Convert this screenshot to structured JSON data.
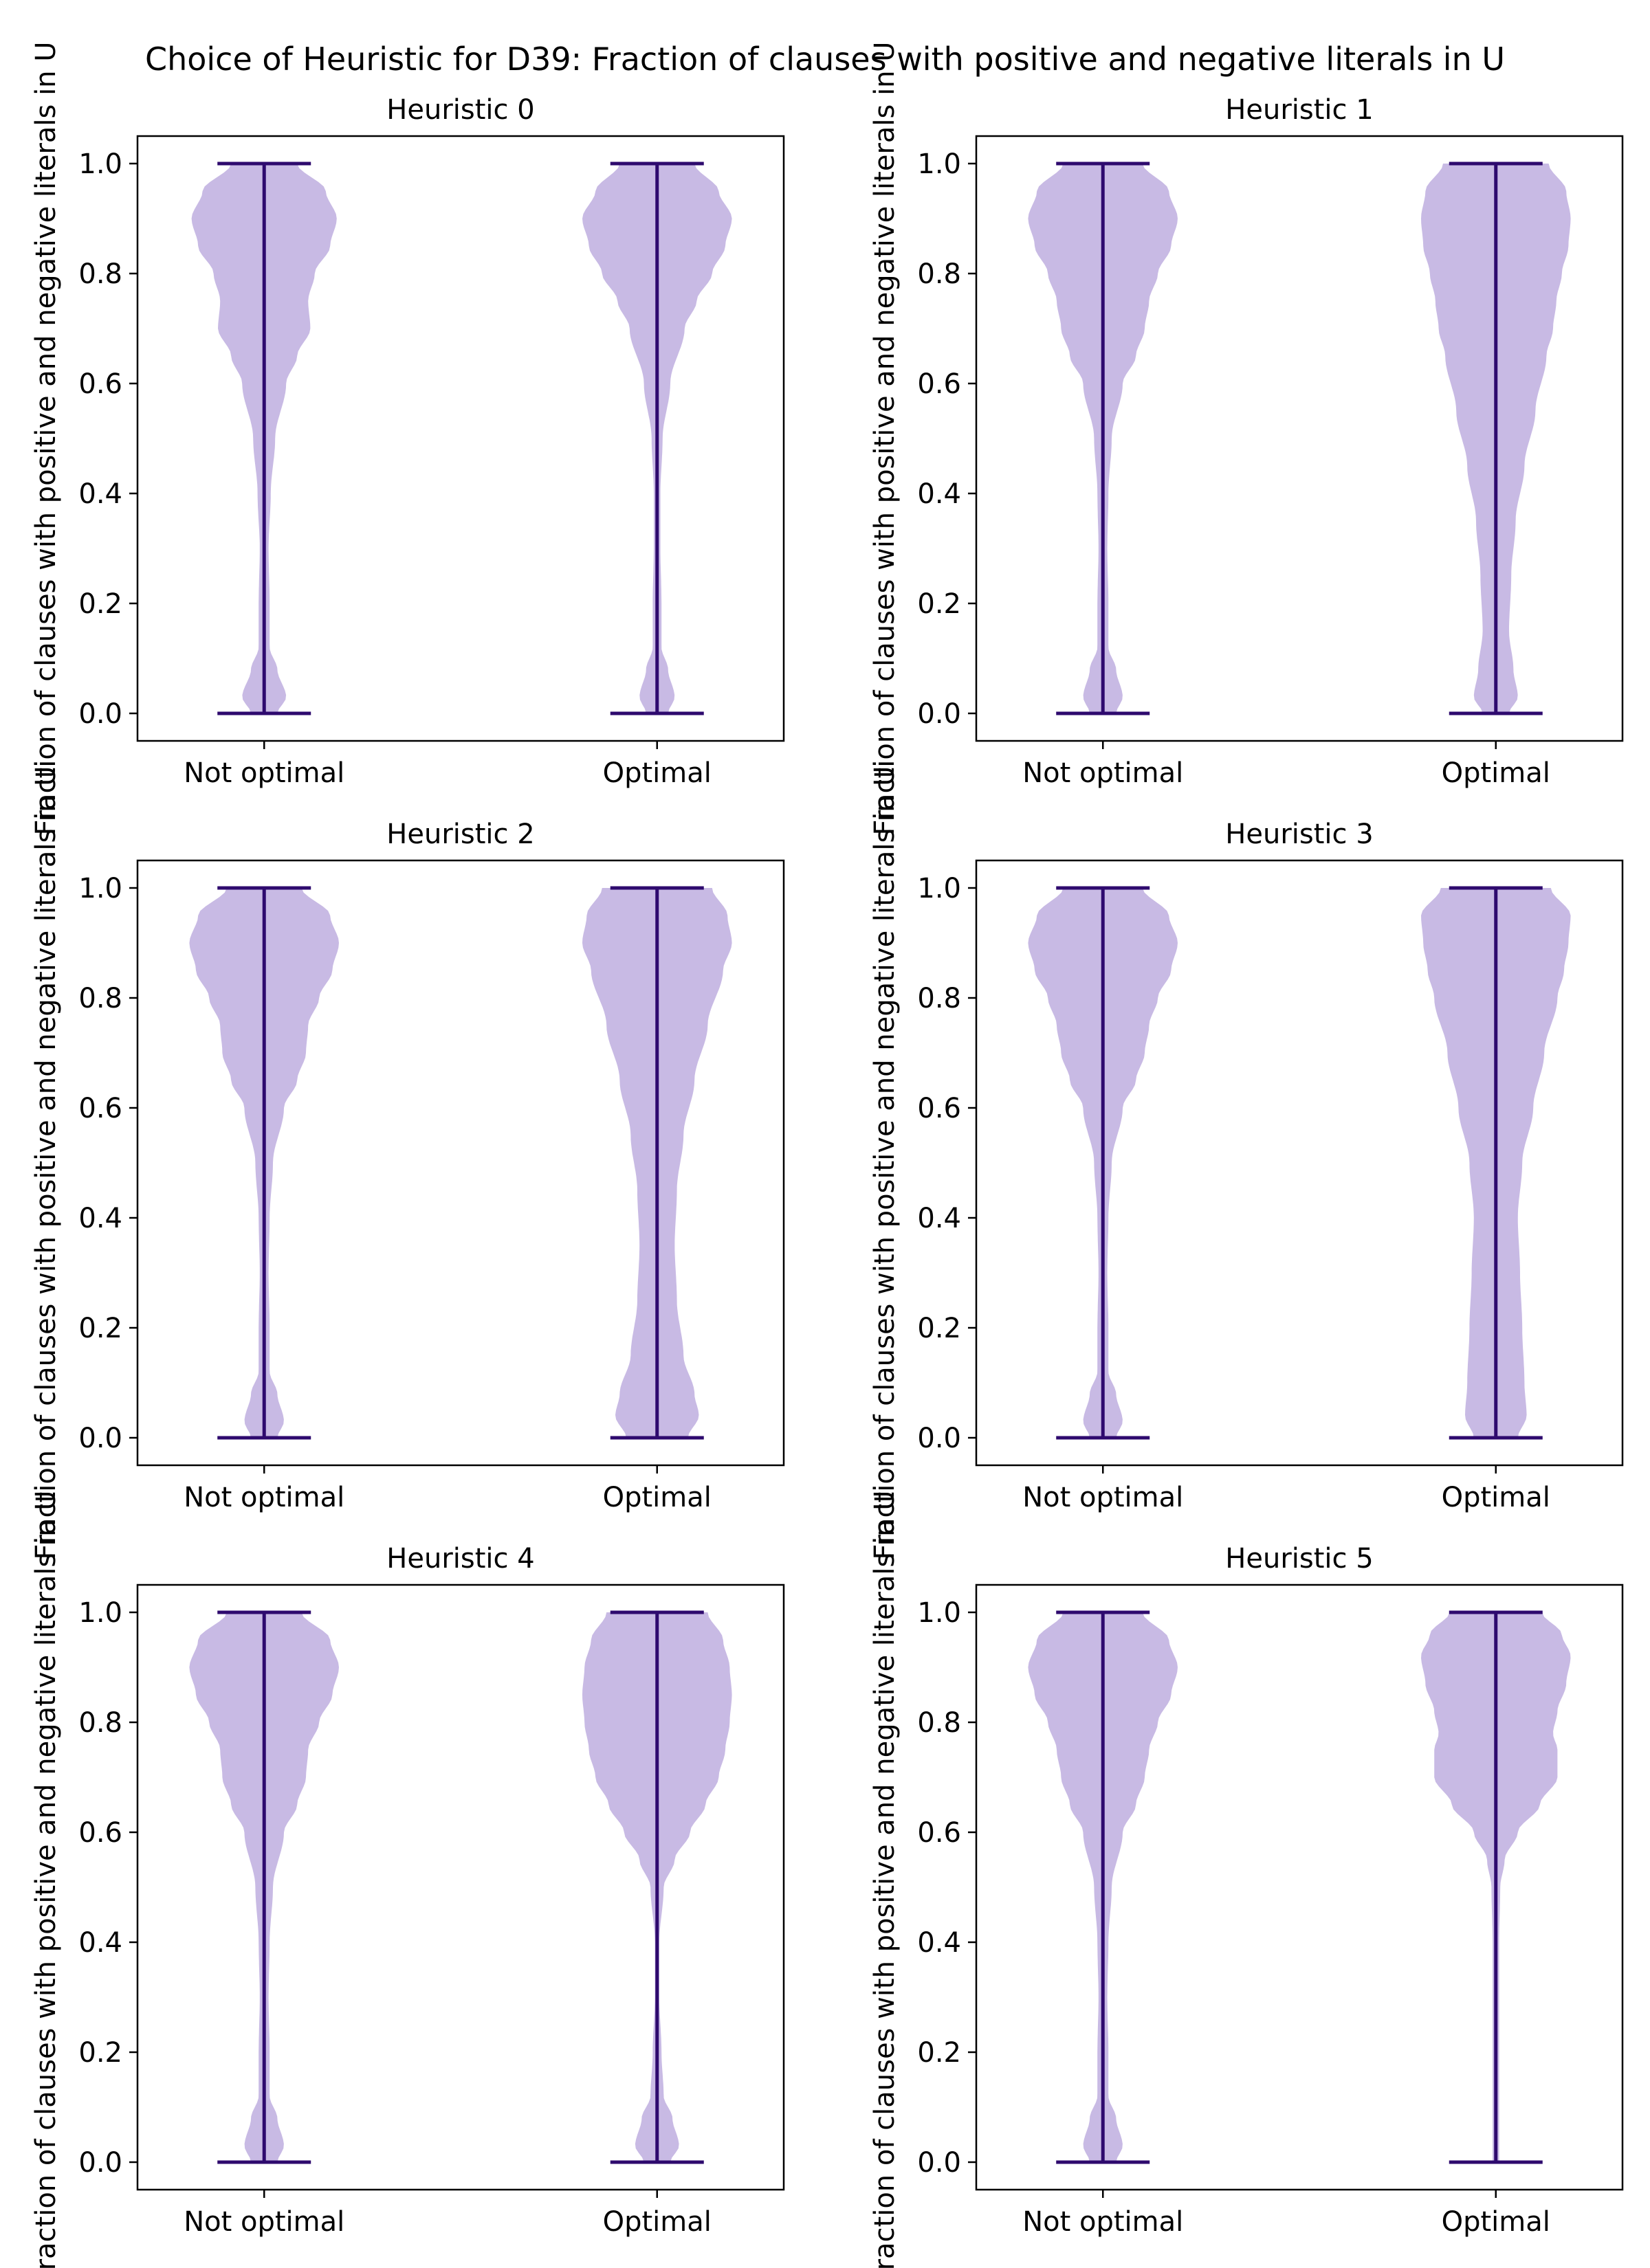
{
  "suptitle": "Choice of Heuristic for  D39: Fraction of clauses with positive and negative literals in U",
  "colors": {
    "body": "#b19cd9",
    "line": "#2e0a6e",
    "axes": "#000000"
  },
  "chart_data": {
    "type": "violin",
    "ylabel": "Fraction of clauses with positive and negative literals in U",
    "categories": [
      "Not optimal",
      "Optimal"
    ],
    "ylim": [
      -0.05,
      1.05
    ],
    "yticks": [
      0.0,
      0.2,
      0.4,
      0.6,
      0.8,
      1.0
    ],
    "grid": false,
    "panels": [
      {
        "title": "Heuristic 0",
        "violins": [
          {
            "name": "Not optimal",
            "min": 0.0,
            "max": 1.0,
            "profile": [
              [
                0,
                0.12
              ],
              [
                0.03,
                0.2
              ],
              [
                0.08,
                0.12
              ],
              [
                0.12,
                0.05
              ],
              [
                0.2,
                0.05
              ],
              [
                0.3,
                0.04
              ],
              [
                0.4,
                0.06
              ],
              [
                0.5,
                0.1
              ],
              [
                0.6,
                0.2
              ],
              [
                0.65,
                0.3
              ],
              [
                0.7,
                0.42
              ],
              [
                0.75,
                0.4
              ],
              [
                0.8,
                0.46
              ],
              [
                0.85,
                0.6
              ],
              [
                0.9,
                0.66
              ],
              [
                0.95,
                0.56
              ],
              [
                1.0,
                0.3
              ]
            ]
          },
          {
            "name": "Optimal",
            "min": 0.0,
            "max": 1.0,
            "profile": [
              [
                0,
                0.1
              ],
              [
                0.03,
                0.16
              ],
              [
                0.08,
                0.1
              ],
              [
                0.12,
                0.04
              ],
              [
                0.2,
                0.04
              ],
              [
                0.3,
                0.03
              ],
              [
                0.4,
                0.03
              ],
              [
                0.5,
                0.05
              ],
              [
                0.6,
                0.12
              ],
              [
                0.7,
                0.25
              ],
              [
                0.75,
                0.36
              ],
              [
                0.8,
                0.5
              ],
              [
                0.85,
                0.62
              ],
              [
                0.9,
                0.68
              ],
              [
                0.95,
                0.56
              ],
              [
                1.0,
                0.34
              ]
            ]
          }
        ]
      },
      {
        "title": "Heuristic 1",
        "violins": [
          {
            "name": "Not optimal",
            "min": 0.0,
            "max": 1.0,
            "profile": [
              [
                0,
                0.12
              ],
              [
                0.03,
                0.18
              ],
              [
                0.08,
                0.12
              ],
              [
                0.12,
                0.05
              ],
              [
                0.2,
                0.05
              ],
              [
                0.3,
                0.04
              ],
              [
                0.4,
                0.05
              ],
              [
                0.5,
                0.08
              ],
              [
                0.6,
                0.18
              ],
              [
                0.65,
                0.3
              ],
              [
                0.7,
                0.38
              ],
              [
                0.75,
                0.42
              ],
              [
                0.8,
                0.5
              ],
              [
                0.85,
                0.62
              ],
              [
                0.9,
                0.68
              ],
              [
                0.95,
                0.6
              ],
              [
                1.0,
                0.36
              ]
            ]
          },
          {
            "name": "Optimal",
            "min": 0.0,
            "max": 1.0,
            "profile": [
              [
                0,
                0.12
              ],
              [
                0.03,
                0.2
              ],
              [
                0.08,
                0.16
              ],
              [
                0.15,
                0.12
              ],
              [
                0.25,
                0.14
              ],
              [
                0.35,
                0.18
              ],
              [
                0.45,
                0.26
              ],
              [
                0.55,
                0.36
              ],
              [
                0.65,
                0.46
              ],
              [
                0.7,
                0.52
              ],
              [
                0.75,
                0.55
              ],
              [
                0.8,
                0.6
              ],
              [
                0.85,
                0.66
              ],
              [
                0.9,
                0.68
              ],
              [
                0.95,
                0.64
              ],
              [
                1.0,
                0.48
              ]
            ]
          }
        ]
      },
      {
        "title": "Heuristic 2",
        "violins": [
          {
            "name": "Not optimal",
            "min": 0.0,
            "max": 1.0,
            "profile": [
              [
                0,
                0.12
              ],
              [
                0.03,
                0.18
              ],
              [
                0.08,
                0.12
              ],
              [
                0.12,
                0.05
              ],
              [
                0.2,
                0.05
              ],
              [
                0.3,
                0.04
              ],
              [
                0.4,
                0.05
              ],
              [
                0.5,
                0.08
              ],
              [
                0.6,
                0.18
              ],
              [
                0.65,
                0.3
              ],
              [
                0.7,
                0.38
              ],
              [
                0.75,
                0.4
              ],
              [
                0.8,
                0.5
              ],
              [
                0.85,
                0.62
              ],
              [
                0.9,
                0.68
              ],
              [
                0.95,
                0.6
              ],
              [
                1.0,
                0.34
              ]
            ]
          },
          {
            "name": "Optimal",
            "min": 0.0,
            "max": 1.0,
            "profile": [
              [
                0,
                0.28
              ],
              [
                0.04,
                0.38
              ],
              [
                0.08,
                0.34
              ],
              [
                0.15,
                0.24
              ],
              [
                0.25,
                0.18
              ],
              [
                0.35,
                0.16
              ],
              [
                0.45,
                0.18
              ],
              [
                0.55,
                0.24
              ],
              [
                0.65,
                0.34
              ],
              [
                0.75,
                0.46
              ],
              [
                0.85,
                0.6
              ],
              [
                0.9,
                0.68
              ],
              [
                0.95,
                0.64
              ],
              [
                1.0,
                0.5
              ]
            ]
          }
        ]
      },
      {
        "title": "Heuristic 3",
        "violins": [
          {
            "name": "Not optimal",
            "min": 0.0,
            "max": 1.0,
            "profile": [
              [
                0,
                0.12
              ],
              [
                0.03,
                0.18
              ],
              [
                0.08,
                0.12
              ],
              [
                0.12,
                0.05
              ],
              [
                0.2,
                0.05
              ],
              [
                0.3,
                0.04
              ],
              [
                0.4,
                0.05
              ],
              [
                0.5,
                0.08
              ],
              [
                0.6,
                0.18
              ],
              [
                0.65,
                0.3
              ],
              [
                0.7,
                0.38
              ],
              [
                0.75,
                0.42
              ],
              [
                0.8,
                0.5
              ],
              [
                0.85,
                0.62
              ],
              [
                0.9,
                0.68
              ],
              [
                0.95,
                0.6
              ],
              [
                1.0,
                0.36
              ]
            ]
          },
          {
            "name": "Optimal",
            "min": 0.0,
            "max": 1.0,
            "profile": [
              [
                0,
                0.2
              ],
              [
                0.04,
                0.28
              ],
              [
                0.1,
                0.26
              ],
              [
                0.2,
                0.24
              ],
              [
                0.3,
                0.22
              ],
              [
                0.4,
                0.2
              ],
              [
                0.5,
                0.24
              ],
              [
                0.6,
                0.34
              ],
              [
                0.7,
                0.44
              ],
              [
                0.8,
                0.56
              ],
              [
                0.85,
                0.62
              ],
              [
                0.9,
                0.66
              ],
              [
                0.95,
                0.68
              ],
              [
                1.0,
                0.5
              ]
            ]
          }
        ]
      },
      {
        "title": "Heuristic 4",
        "violins": [
          {
            "name": "Not optimal",
            "min": 0.0,
            "max": 1.0,
            "profile": [
              [
                0,
                0.12
              ],
              [
                0.03,
                0.18
              ],
              [
                0.08,
                0.12
              ],
              [
                0.12,
                0.05
              ],
              [
                0.2,
                0.05
              ],
              [
                0.3,
                0.04
              ],
              [
                0.4,
                0.05
              ],
              [
                0.5,
                0.08
              ],
              [
                0.6,
                0.18
              ],
              [
                0.65,
                0.3
              ],
              [
                0.7,
                0.38
              ],
              [
                0.75,
                0.4
              ],
              [
                0.8,
                0.5
              ],
              [
                0.85,
                0.62
              ],
              [
                0.9,
                0.68
              ],
              [
                0.95,
                0.6
              ],
              [
                1.0,
                0.34
              ]
            ]
          },
          {
            "name": "Optimal",
            "min": 0.0,
            "max": 1.0,
            "profile": [
              [
                0,
                0.12
              ],
              [
                0.03,
                0.2
              ],
              [
                0.08,
                0.14
              ],
              [
                0.12,
                0.06
              ],
              [
                0.2,
                0.04
              ],
              [
                0.3,
                0.02
              ],
              [
                0.4,
                0.02
              ],
              [
                0.5,
                0.06
              ],
              [
                0.55,
                0.16
              ],
              [
                0.6,
                0.3
              ],
              [
                0.65,
                0.44
              ],
              [
                0.7,
                0.56
              ],
              [
                0.75,
                0.62
              ],
              [
                0.8,
                0.66
              ],
              [
                0.85,
                0.68
              ],
              [
                0.9,
                0.66
              ],
              [
                0.95,
                0.6
              ],
              [
                1.0,
                0.46
              ]
            ]
          }
        ]
      },
      {
        "title": "Heuristic 5",
        "violins": [
          {
            "name": "Not optimal",
            "min": 0.0,
            "max": 1.0,
            "profile": [
              [
                0,
                0.12
              ],
              [
                0.03,
                0.18
              ],
              [
                0.08,
                0.12
              ],
              [
                0.12,
                0.05
              ],
              [
                0.2,
                0.05
              ],
              [
                0.3,
                0.04
              ],
              [
                0.4,
                0.05
              ],
              [
                0.5,
                0.08
              ],
              [
                0.6,
                0.18
              ],
              [
                0.65,
                0.3
              ],
              [
                0.7,
                0.38
              ],
              [
                0.75,
                0.42
              ],
              [
                0.8,
                0.5
              ],
              [
                0.85,
                0.62
              ],
              [
                0.9,
                0.68
              ],
              [
                0.95,
                0.6
              ],
              [
                1.0,
                0.36
              ]
            ]
          },
          {
            "name": "Optimal",
            "min": 0.0,
            "max": 1.0,
            "profile": [
              [
                0,
                0.03
              ],
              [
                0.1,
                0.03
              ],
              [
                0.2,
                0.03
              ],
              [
                0.3,
                0.03
              ],
              [
                0.4,
                0.03
              ],
              [
                0.5,
                0.04
              ],
              [
                0.55,
                0.08
              ],
              [
                0.6,
                0.2
              ],
              [
                0.65,
                0.4
              ],
              [
                0.7,
                0.56
              ],
              [
                0.75,
                0.56
              ],
              [
                0.78,
                0.52
              ],
              [
                0.82,
                0.56
              ],
              [
                0.87,
                0.64
              ],
              [
                0.92,
                0.68
              ],
              [
                0.96,
                0.6
              ],
              [
                1.0,
                0.42
              ]
            ]
          }
        ]
      }
    ]
  }
}
